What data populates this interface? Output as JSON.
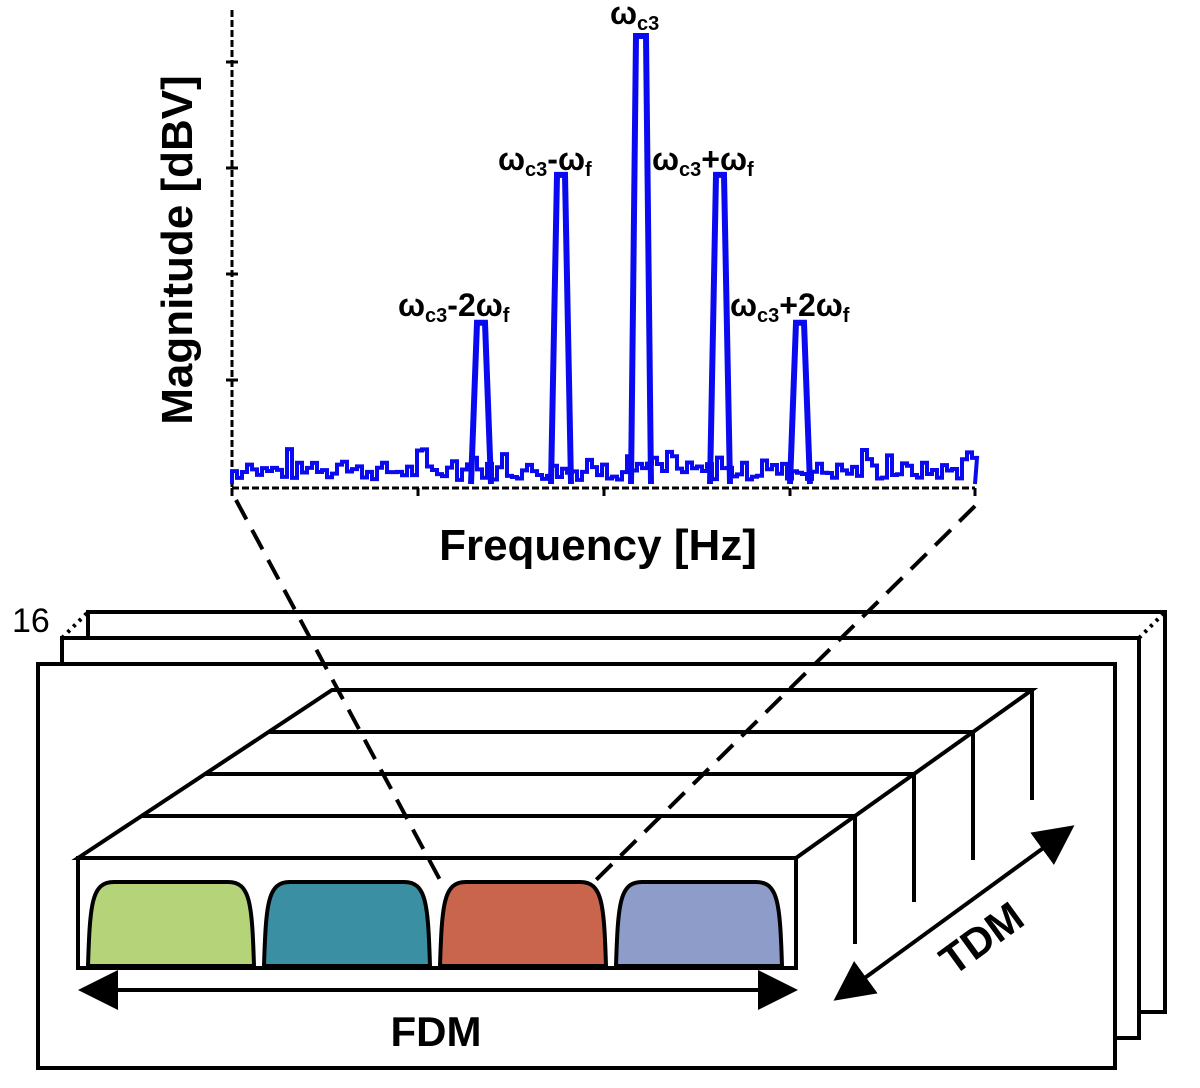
{
  "spectrum": {
    "ylabel": "Magnitude [dBV]",
    "xlabel": "Frequency [Hz]",
    "peaks": [
      {
        "main": "ω",
        "sub": "c3",
        "rest": "-2ω",
        "sub2": "f",
        "level": 0.36
      },
      {
        "main": "ω",
        "sub": "c3",
        "rest": "-ω",
        "sub2": "f",
        "level": 0.69
      },
      {
        "main": "ω",
        "sub": "c3",
        "rest": "",
        "sub2": "",
        "level": 1.0
      },
      {
        "main": "ω",
        "sub": "c3",
        "rest": "+ω",
        "sub2": "f",
        "level": 0.69
      },
      {
        "main": "ω",
        "sub": "c3",
        "rest": "+2ω",
        "sub2": "f",
        "level": 0.36
      }
    ],
    "trace_color": "#0a0af0"
  },
  "frames": {
    "count_label": "16",
    "colors": [
      "#b5d47a",
      "#3b8fa3",
      "#c9654d",
      "#8e9cc9"
    ]
  },
  "axes_labels": {
    "fdm": "FDM",
    "tdm": "TDM"
  }
}
